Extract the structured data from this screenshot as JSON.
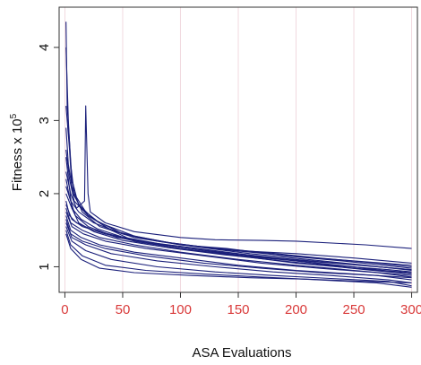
{
  "chart_data": {
    "type": "line",
    "xlabel": "ASA Evaluations",
    "ylabel_main": "Fitness x 10",
    "ylabel_sup": "5",
    "xlim": [
      -5,
      305
    ],
    "ylim": [
      0.65,
      4.55
    ],
    "xticks": [
      0,
      50,
      100,
      150,
      200,
      250,
      300
    ],
    "yticks": [
      1,
      2,
      3,
      4
    ],
    "grid": true,
    "colors": {
      "line": "#1a1f7a",
      "xtick": "#d93a3a",
      "ytick": "#111111",
      "grid": "#f1d9df",
      "axis": "#333333"
    },
    "series": [
      {
        "points": [
          [
            1,
            4.35
          ],
          [
            2,
            3.2
          ],
          [
            4,
            2.7
          ],
          [
            6,
            2.2
          ],
          [
            10,
            1.95
          ],
          [
            20,
            1.7
          ],
          [
            40,
            1.5
          ],
          [
            60,
            1.35
          ],
          [
            100,
            1.25
          ],
          [
            150,
            1.15
          ],
          [
            200,
            1.08
          ],
          [
            250,
            1.0
          ],
          [
            300,
            0.9
          ]
        ]
      },
      {
        "points": [
          [
            1,
            4.0
          ],
          [
            3,
            3.0
          ],
          [
            5,
            2.4
          ],
          [
            8,
            2.0
          ],
          [
            15,
            1.75
          ],
          [
            30,
            1.55
          ],
          [
            60,
            1.4
          ],
          [
            100,
            1.3
          ],
          [
            150,
            1.22
          ],
          [
            200,
            1.18
          ],
          [
            250,
            1.12
          ],
          [
            300,
            1.05
          ]
        ]
      },
      {
        "points": [
          [
            1,
            3.2
          ],
          [
            4,
            2.6
          ],
          [
            6,
            2.1
          ],
          [
            12,
            1.85
          ],
          [
            25,
            1.65
          ],
          [
            50,
            1.45
          ],
          [
            80,
            1.35
          ],
          [
            120,
            1.27
          ],
          [
            170,
            1.2
          ],
          [
            220,
            1.12
          ],
          [
            270,
            1.05
          ],
          [
            300,
            1.0
          ]
        ]
      },
      {
        "points": [
          [
            1,
            2.9
          ],
          [
            3,
            2.4
          ],
          [
            7,
            2.0
          ],
          [
            14,
            1.8
          ],
          [
            30,
            1.6
          ],
          [
            60,
            1.42
          ],
          [
            100,
            1.3
          ],
          [
            140,
            1.25
          ],
          [
            190,
            1.15
          ],
          [
            240,
            1.08
          ],
          [
            300,
            0.98
          ]
        ]
      },
      {
        "points": [
          [
            1,
            2.6
          ],
          [
            4,
            2.2
          ],
          [
            8,
            1.9
          ],
          [
            20,
            1.7
          ],
          [
            40,
            1.5
          ],
          [
            70,
            1.38
          ],
          [
            110,
            1.28
          ],
          [
            160,
            1.18
          ],
          [
            210,
            1.1
          ],
          [
            260,
            1.02
          ],
          [
            300,
            0.95
          ]
        ]
      },
      {
        "points": [
          [
            1,
            2.3
          ],
          [
            5,
            2.0
          ],
          [
            10,
            1.8
          ],
          [
            17,
            1.9
          ],
          [
            18,
            3.2
          ],
          [
            19,
            2.6
          ],
          [
            20,
            2.0
          ],
          [
            22,
            1.75
          ],
          [
            35,
            1.6
          ],
          [
            60,
            1.48
          ],
          [
            100,
            1.4
          ],
          [
            130,
            1.37
          ],
          [
            170,
            1.36
          ],
          [
            200,
            1.35
          ],
          [
            260,
            1.3
          ],
          [
            300,
            1.25
          ]
        ]
      },
      {
        "points": [
          [
            1,
            2.1
          ],
          [
            5,
            1.9
          ],
          [
            12,
            1.75
          ],
          [
            25,
            1.6
          ],
          [
            50,
            1.45
          ],
          [
            90,
            1.33
          ],
          [
            140,
            1.23
          ],
          [
            200,
            1.14
          ],
          [
            250,
            1.08
          ],
          [
            300,
            1.02
          ]
        ]
      },
      {
        "points": [
          [
            1,
            2.0
          ],
          [
            6,
            1.8
          ],
          [
            14,
            1.65
          ],
          [
            28,
            1.52
          ],
          [
            55,
            1.38
          ],
          [
            95,
            1.28
          ],
          [
            140,
            1.18
          ],
          [
            190,
            1.1
          ],
          [
            240,
            1.04
          ],
          [
            300,
            0.96
          ]
        ]
      },
      {
        "points": [
          [
            1,
            1.9
          ],
          [
            4,
            1.7
          ],
          [
            10,
            1.6
          ],
          [
            25,
            1.5
          ],
          [
            45,
            1.42
          ],
          [
            80,
            1.32
          ],
          [
            130,
            1.22
          ],
          [
            180,
            1.12
          ],
          [
            230,
            1.02
          ],
          [
            280,
            0.96
          ],
          [
            300,
            0.93
          ]
        ]
      },
      {
        "points": [
          [
            1,
            1.85
          ],
          [
            6,
            1.65
          ],
          [
            15,
            1.55
          ],
          [
            35,
            1.45
          ],
          [
            60,
            1.35
          ],
          [
            100,
            1.25
          ],
          [
            150,
            1.15
          ],
          [
            200,
            1.05
          ],
          [
            250,
            0.98
          ],
          [
            300,
            0.92
          ]
        ]
      },
      {
        "points": [
          [
            1,
            1.8
          ],
          [
            5,
            1.6
          ],
          [
            15,
            1.5
          ],
          [
            30,
            1.4
          ],
          [
            60,
            1.3
          ],
          [
            100,
            1.2
          ],
          [
            150,
            1.1
          ],
          [
            200,
            1.02
          ],
          [
            250,
            0.95
          ],
          [
            300,
            0.88
          ]
        ]
      },
      {
        "points": [
          [
            1,
            1.75
          ],
          [
            6,
            1.55
          ],
          [
            16,
            1.45
          ],
          [
            35,
            1.35
          ],
          [
            70,
            1.25
          ],
          [
            120,
            1.15
          ],
          [
            170,
            1.05
          ],
          [
            220,
            0.98
          ],
          [
            270,
            0.92
          ],
          [
            300,
            0.86
          ]
        ]
      },
      {
        "points": [
          [
            1,
            1.7
          ],
          [
            5,
            1.5
          ],
          [
            14,
            1.4
          ],
          [
            30,
            1.3
          ],
          [
            60,
            1.2
          ],
          [
            100,
            1.12
          ],
          [
            150,
            1.02
          ],
          [
            200,
            0.95
          ],
          [
            250,
            0.9
          ],
          [
            300,
            0.85
          ]
        ]
      },
      {
        "points": [
          [
            1,
            1.65
          ],
          [
            5,
            1.45
          ],
          [
            15,
            1.35
          ],
          [
            35,
            1.25
          ],
          [
            70,
            1.15
          ],
          [
            120,
            1.05
          ],
          [
            170,
            0.98
          ],
          [
            220,
            0.92
          ],
          [
            270,
            0.88
          ],
          [
            300,
            0.82
          ]
        ]
      },
      {
        "points": [
          [
            1,
            1.6
          ],
          [
            6,
            1.4
          ],
          [
            18,
            1.3
          ],
          [
            40,
            1.18
          ],
          [
            80,
            1.08
          ],
          [
            130,
            1.0
          ],
          [
            180,
            0.93
          ],
          [
            230,
            0.88
          ],
          [
            280,
            0.82
          ],
          [
            300,
            0.78
          ]
        ]
      },
      {
        "points": [
          [
            1,
            1.55
          ],
          [
            6,
            1.35
          ],
          [
            18,
            1.22
          ],
          [
            40,
            1.1
          ],
          [
            80,
            1.0
          ],
          [
            130,
            0.93
          ],
          [
            180,
            0.88
          ],
          [
            230,
            0.84
          ],
          [
            280,
            0.8
          ],
          [
            300,
            0.74
          ]
        ]
      },
      {
        "points": [
          [
            1,
            1.5
          ],
          [
            5,
            1.3
          ],
          [
            15,
            1.15
          ],
          [
            35,
            1.02
          ],
          [
            70,
            0.95
          ],
          [
            120,
            0.9
          ],
          [
            170,
            0.86
          ],
          [
            220,
            0.82
          ],
          [
            270,
            0.78
          ],
          [
            300,
            0.72
          ]
        ]
      },
      {
        "points": [
          [
            1,
            1.45
          ],
          [
            5,
            1.25
          ],
          [
            14,
            1.1
          ],
          [
            30,
            0.98
          ],
          [
            60,
            0.92
          ],
          [
            110,
            0.88
          ],
          [
            160,
            0.85
          ],
          [
            210,
            0.83
          ],
          [
            260,
            0.8
          ],
          [
            300,
            0.78
          ]
        ]
      },
      {
        "points": [
          [
            1,
            2.5
          ],
          [
            3,
            2.2
          ],
          [
            6,
            1.8
          ],
          [
            12,
            1.6
          ],
          [
            25,
            1.48
          ],
          [
            50,
            1.36
          ],
          [
            90,
            1.26
          ],
          [
            140,
            1.16
          ],
          [
            200,
            1.06
          ],
          [
            260,
            0.96
          ],
          [
            300,
            0.9
          ]
        ]
      },
      {
        "points": [
          [
            1,
            2.2
          ],
          [
            4,
            1.95
          ],
          [
            9,
            1.7
          ],
          [
            20,
            1.55
          ],
          [
            45,
            1.4
          ],
          [
            85,
            1.3
          ],
          [
            135,
            1.2
          ],
          [
            185,
            1.12
          ],
          [
            235,
            1.05
          ],
          [
            285,
            0.98
          ],
          [
            300,
            0.96
          ]
        ]
      }
    ]
  }
}
